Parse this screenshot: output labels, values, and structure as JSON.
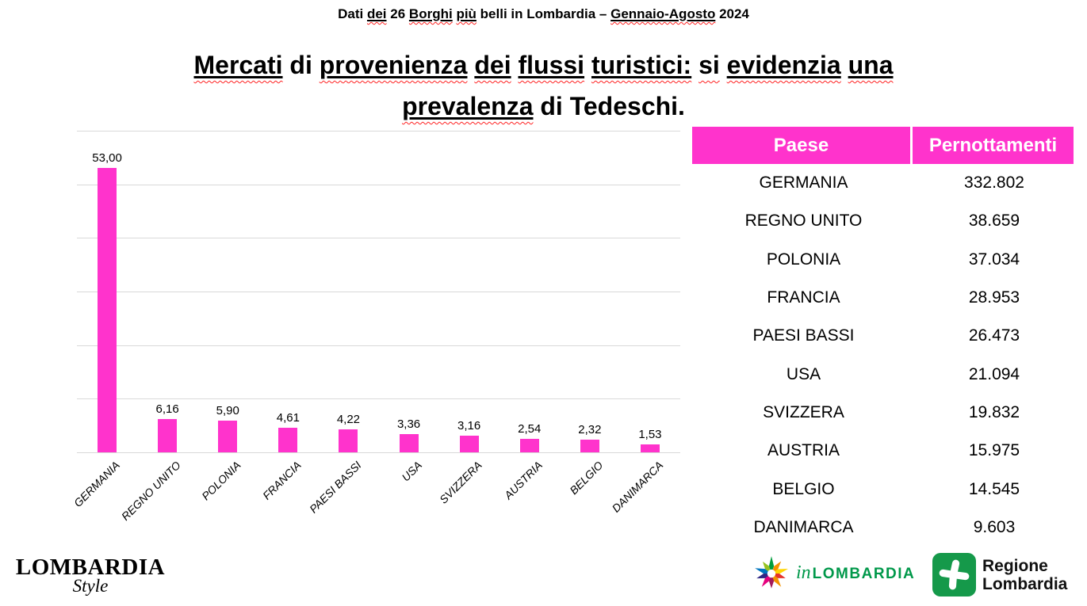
{
  "page": {
    "background": "#ffffff",
    "accent_pink": "#FF33CC",
    "gridline_color": "#d9d9d9",
    "squiggle_color": "#ff2121"
  },
  "header_note": {
    "tokens": [
      {
        "t": "Dati",
        "m": ""
      },
      {
        "t": "dei",
        "m": "us"
      },
      {
        "t": "26",
        "m": ""
      },
      {
        "t": "Borghi",
        "m": "us"
      },
      {
        "t": "più",
        "m": "us"
      },
      {
        "t": "belli",
        "m": ""
      },
      {
        "t": "in",
        "m": ""
      },
      {
        "t": "Lombardia",
        "m": ""
      },
      {
        "t": "–",
        "m": ""
      },
      {
        "t": "Gennaio-Agosto",
        "m": "us"
      },
      {
        "t": "2024",
        "m": ""
      }
    ]
  },
  "title": {
    "lines": [
      [
        {
          "t": "Mercati",
          "m": "us"
        },
        {
          "t": "di",
          "m": ""
        },
        {
          "t": "provenienza",
          "m": "us"
        },
        {
          "t": "dei",
          "m": "us"
        },
        {
          "t": "flussi",
          "m": "us"
        },
        {
          "t": "turistici:",
          "m": "us"
        },
        {
          "t": "si",
          "m": "s"
        },
        {
          "t": "evidenzia",
          "m": "us"
        },
        {
          "t": "una",
          "m": "us"
        }
      ],
      [
        {
          "t": "prevalenza",
          "m": "us"
        },
        {
          "t": "di",
          "m": ""
        },
        {
          "t": "Tedeschi.",
          "m": ""
        }
      ]
    ]
  },
  "chart_data": {
    "type": "bar",
    "title": "",
    "xlabel": "",
    "ylabel": "",
    "categories": [
      "GERMANIA",
      "REGNO UNITO",
      "POLONIA",
      "FRANCIA",
      "PAESI BASSI",
      "USA",
      "SVIZZERA",
      "AUSTRIA",
      "BELGIO",
      "DANIMARCA"
    ],
    "values": [
      53.0,
      6.16,
      5.9,
      4.61,
      4.22,
      3.36,
      3.16,
      2.54,
      2.32,
      1.53
    ],
    "value_labels": [
      "53,00",
      "6,16",
      "5,90",
      "4,61",
      "4,22",
      "3,36",
      "3,16",
      "2,54",
      "2,32",
      "1,53"
    ],
    "bar_color": "#FF33CC",
    "ylim": [
      0,
      60
    ],
    "gridline_step": 10,
    "grid": true,
    "legend": "none",
    "category_label_style": "italic, rotated 45deg"
  },
  "table": {
    "headers": [
      "Paese",
      "Pernottamenti"
    ],
    "header_bg": "#FF33CC",
    "header_text_color": "#ffffff",
    "rows": [
      [
        "GERMANIA",
        "332.802"
      ],
      [
        "REGNO UNITO",
        "38.659"
      ],
      [
        "POLONIA",
        "37.034"
      ],
      [
        "FRANCIA",
        "28.953"
      ],
      [
        "PAESI BASSI",
        "26.473"
      ],
      [
        "USA",
        "21.094"
      ],
      [
        "SVIZZERA",
        "19.832"
      ],
      [
        "AUSTRIA",
        "15.975"
      ],
      [
        "BELGIO",
        "14.545"
      ],
      [
        "DANIMARCA",
        "9.603"
      ]
    ]
  },
  "footer": {
    "lombardia_style": {
      "line1": "LOMBARDIA",
      "line2": "Style"
    },
    "inlombardia": {
      "prefix": "in",
      "name": "LOMBARDIA",
      "color": "#00984A"
    },
    "regione": {
      "line1": "Regione",
      "line2": "Lombardia",
      "green": "#15994a"
    }
  }
}
